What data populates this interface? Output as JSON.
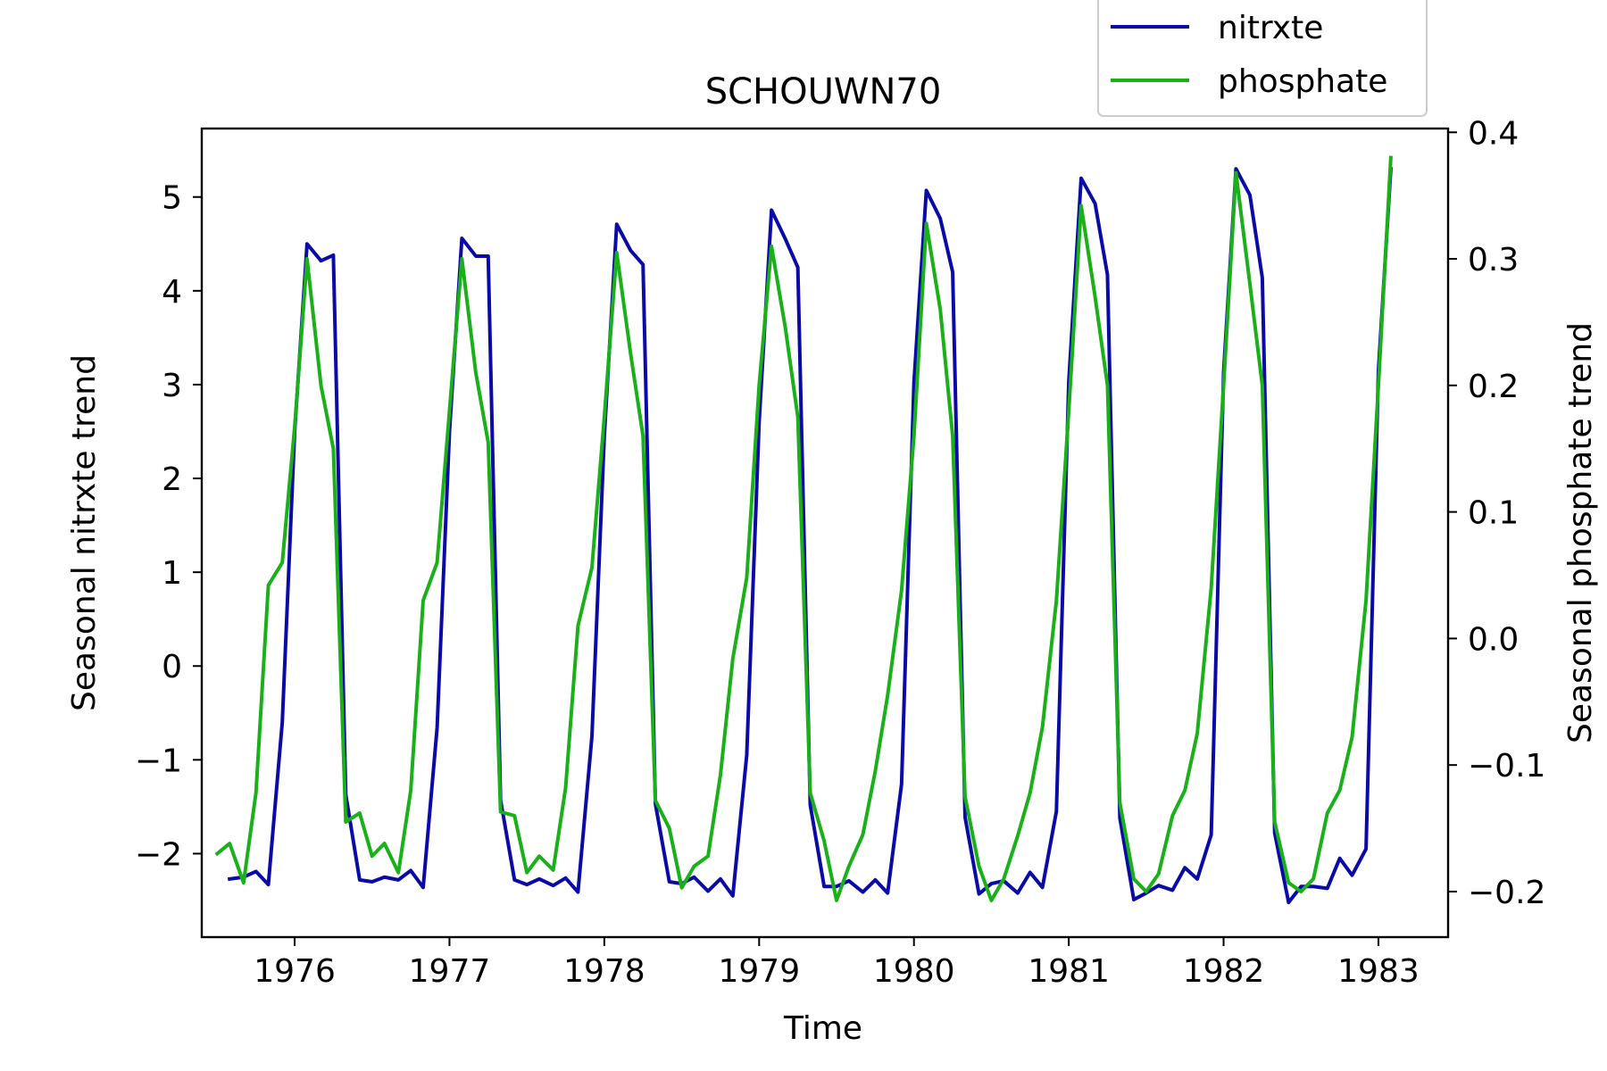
{
  "chart_data": {
    "type": "line",
    "title": "SCHOUWN70",
    "xlabel": "Time",
    "ylabel_left": "Seasonal nitrxte trend",
    "ylabel_right": "Seasonal phosphate trend",
    "xlim": [
      1975.4,
      1983.45
    ],
    "ylim_left": [
      -2.89,
      5.73
    ],
    "ylim_right": [
      -0.236,
      0.403
    ],
    "x_ticks": [
      1976,
      1977,
      1978,
      1979,
      1980,
      1981,
      1982,
      1983
    ],
    "x_tick_labels": [
      "1976",
      "1977",
      "1978",
      "1979",
      "1980",
      "1981",
      "1982",
      "1983"
    ],
    "y_left_ticks": [
      -2,
      -1,
      0,
      1,
      2,
      3,
      4,
      5
    ],
    "y_left_tick_labels": [
      "−2",
      "−1",
      "0",
      "1",
      "2",
      "3",
      "4",
      "5"
    ],
    "y_right_ticks": [
      -0.2,
      -0.1,
      0.0,
      0.1,
      0.2,
      0.3,
      0.4
    ],
    "y_right_tick_labels": [
      "−0.2",
      "−0.1",
      "0.0",
      "0.1",
      "0.2",
      "0.3",
      "0.4"
    ],
    "legend": {
      "placement": "top-right, above axes",
      "entries": [
        "nitrxte",
        "phosphate"
      ]
    },
    "series": [
      {
        "name": "nitrxte",
        "axis": "left",
        "color": "#0a0aa8",
        "x": [
          1975.58,
          1975.67,
          1975.75,
          1975.83,
          1975.92,
          1976.0,
          1976.08,
          1976.17,
          1976.25,
          1976.33,
          1976.42,
          1976.5,
          1976.58,
          1976.67,
          1976.75,
          1976.83,
          1976.92,
          1977.0,
          1977.08,
          1977.17,
          1977.25,
          1977.33,
          1977.42,
          1977.5,
          1977.58,
          1977.67,
          1977.75,
          1977.83,
          1977.92,
          1978.0,
          1978.08,
          1978.17,
          1978.25,
          1978.33,
          1978.42,
          1978.5,
          1978.58,
          1978.67,
          1978.75,
          1978.83,
          1978.92,
          1979.0,
          1979.08,
          1979.17,
          1979.25,
          1979.33,
          1979.42,
          1979.5,
          1979.58,
          1979.67,
          1979.75,
          1979.83,
          1979.92,
          1980.0,
          1980.08,
          1980.17,
          1980.25,
          1980.33,
          1980.42,
          1980.5,
          1980.58,
          1980.67,
          1980.75,
          1980.83,
          1980.92,
          1981.0,
          1981.08,
          1981.17,
          1981.25,
          1981.33,
          1981.42,
          1981.5,
          1981.58,
          1981.67,
          1981.75,
          1981.83,
          1981.92,
          1982.0,
          1982.08,
          1982.17,
          1982.25,
          1982.33,
          1982.42,
          1982.5,
          1982.58,
          1982.67,
          1982.75,
          1982.83,
          1982.92,
          1983.0,
          1983.08
        ],
        "y": [
          -2.27,
          -2.25,
          -2.19,
          -2.33,
          -0.6,
          2.5,
          4.5,
          4.32,
          4.38,
          -1.37,
          -2.28,
          -2.3,
          -2.25,
          -2.28,
          -2.18,
          -2.36,
          -0.66,
          2.5,
          4.56,
          4.37,
          4.37,
          -1.43,
          -2.28,
          -2.33,
          -2.27,
          -2.34,
          -2.26,
          -2.41,
          -0.75,
          2.45,
          4.71,
          4.43,
          4.28,
          -1.47,
          -2.3,
          -2.32,
          -2.25,
          -2.4,
          -2.27,
          -2.45,
          -0.95,
          2.6,
          4.86,
          4.55,
          4.25,
          -1.48,
          -2.35,
          -2.35,
          -2.29,
          -2.41,
          -2.28,
          -2.42,
          -1.26,
          3.02,
          5.07,
          4.77,
          4.2,
          -1.61,
          -2.43,
          -2.32,
          -2.29,
          -2.42,
          -2.2,
          -2.36,
          -1.55,
          3.03,
          5.2,
          4.93,
          4.17,
          -1.62,
          -2.49,
          -2.42,
          -2.34,
          -2.39,
          -2.15,
          -2.27,
          -1.8,
          3.13,
          5.3,
          5.02,
          4.14,
          -1.78,
          -2.52,
          -2.35,
          -2.35,
          -2.37,
          -2.05,
          -2.23,
          -1.95,
          3.15,
          5.3
        ]
      },
      {
        "name": "phosphate",
        "axis": "right",
        "color": "#19b019",
        "x": [
          1975.5,
          1975.58,
          1975.67,
          1975.75,
          1975.83,
          1975.92,
          1976.0,
          1976.08,
          1976.17,
          1976.25,
          1976.33,
          1976.42,
          1976.5,
          1976.58,
          1976.67,
          1976.75,
          1976.83,
          1976.92,
          1977.0,
          1977.08,
          1977.17,
          1977.25,
          1977.33,
          1977.42,
          1977.5,
          1977.58,
          1977.67,
          1977.75,
          1977.83,
          1977.92,
          1978.0,
          1978.08,
          1978.17,
          1978.25,
          1978.33,
          1978.42,
          1978.5,
          1978.58,
          1978.67,
          1978.75,
          1978.83,
          1978.92,
          1979.0,
          1979.08,
          1979.17,
          1979.25,
          1979.33,
          1979.42,
          1979.5,
          1979.58,
          1979.67,
          1979.75,
          1979.83,
          1979.92,
          1980.0,
          1980.08,
          1980.17,
          1980.25,
          1980.33,
          1980.42,
          1980.5,
          1980.58,
          1980.67,
          1980.75,
          1980.83,
          1980.92,
          1981.0,
          1981.08,
          1981.17,
          1981.25,
          1981.33,
          1981.42,
          1981.5,
          1981.58,
          1981.67,
          1981.75,
          1981.83,
          1981.92,
          1982.0,
          1982.08,
          1982.17,
          1982.25,
          1982.33,
          1982.42,
          1982.5,
          1982.58,
          1982.67,
          1982.75,
          1982.83,
          1982.92,
          1983.0,
          1983.08
        ],
        "y": [
          -0.17,
          -0.162,
          -0.193,
          -0.122,
          0.042,
          0.06,
          0.167,
          0.3,
          0.2,
          0.15,
          -0.145,
          -0.138,
          -0.172,
          -0.162,
          -0.185,
          -0.12,
          0.03,
          0.06,
          0.18,
          0.3,
          0.21,
          0.155,
          -0.137,
          -0.14,
          -0.185,
          -0.172,
          -0.183,
          -0.118,
          0.01,
          0.056,
          0.175,
          0.305,
          0.225,
          0.16,
          -0.128,
          -0.15,
          -0.197,
          -0.18,
          -0.172,
          -0.108,
          -0.016,
          0.048,
          0.2,
          0.31,
          0.245,
          0.175,
          -0.122,
          -0.16,
          -0.207,
          -0.18,
          -0.155,
          -0.105,
          -0.045,
          0.038,
          0.16,
          0.328,
          0.26,
          0.16,
          -0.125,
          -0.18,
          -0.207,
          -0.19,
          -0.156,
          -0.122,
          -0.07,
          0.03,
          0.18,
          0.342,
          0.27,
          0.2,
          -0.13,
          -0.19,
          -0.2,
          -0.186,
          -0.14,
          -0.12,
          -0.075,
          0.04,
          0.2,
          0.368,
          0.28,
          0.2,
          -0.145,
          -0.193,
          -0.2,
          -0.19,
          -0.138,
          -0.12,
          -0.078,
          0.03,
          0.2,
          0.38
        ]
      }
    ]
  }
}
